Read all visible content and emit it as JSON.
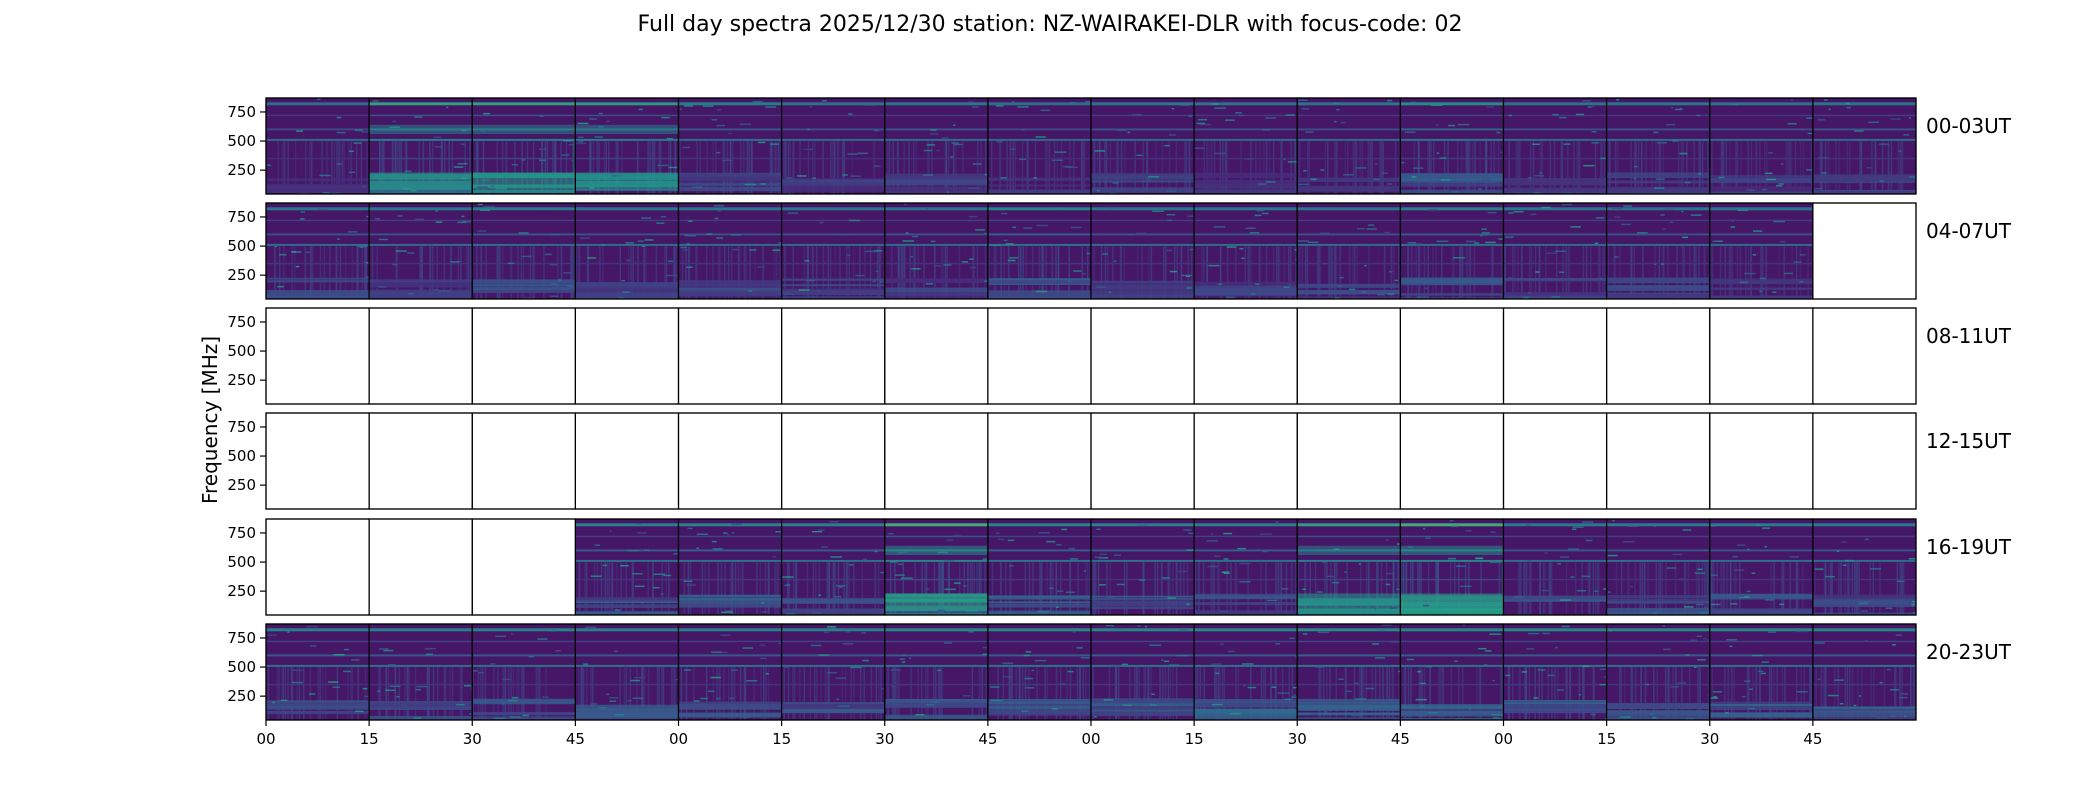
{
  "chart_data": {
    "type": "heatmap",
    "title": "Full day spectra 2025/12/30 station: NZ-WAIRAKEI-DLR with focus-code: 02",
    "xlabel": "",
    "ylabel": "Frequency [MHz]",
    "y_ticks": [
      "250",
      "500",
      "750"
    ],
    "y_tick_values": [
      250,
      500,
      750
    ],
    "ylim": [
      45,
      870
    ],
    "x_ticks": [
      "00",
      "15",
      "30",
      "45",
      "00",
      "15",
      "30",
      "45",
      "00",
      "15",
      "30",
      "45",
      "00",
      "15",
      "30",
      "45"
    ],
    "x_tick_minutes": [
      0,
      15,
      30,
      45,
      60,
      75,
      90,
      105,
      120,
      135,
      150,
      165,
      180,
      195,
      210,
      225
    ],
    "xlim_minutes": [
      0,
      240
    ],
    "colormap": "viridis",
    "grid": false,
    "rows": [
      {
        "label": "00-03UT",
        "available": [
          1,
          1,
          1,
          1,
          1,
          1,
          1,
          1,
          1,
          1,
          1,
          1,
          1,
          1,
          1,
          1
        ],
        "intensity": [
          0.1,
          0.6,
          0.6,
          0.55,
          0.25,
          0.15,
          0.2,
          0.1,
          0.2,
          0.15,
          0.15,
          0.4,
          0.15,
          0.2,
          0.15,
          0.2
        ]
      },
      {
        "label": "04-07UT",
        "available": [
          1,
          1,
          1,
          1,
          1,
          1,
          1,
          1,
          1,
          1,
          1,
          1,
          1,
          1,
          1,
          0
        ],
        "intensity": [
          0.2,
          0.2,
          0.25,
          0.2,
          0.2,
          0.2,
          0.2,
          0.35,
          0.2,
          0.2,
          0.2,
          0.3,
          0.2,
          0.2,
          0.2,
          0
        ]
      },
      {
        "label": "08-11UT",
        "available": [
          0,
          0,
          0,
          0,
          0,
          0,
          0,
          0,
          0,
          0,
          0,
          0,
          0,
          0,
          0,
          0
        ],
        "intensity": [
          0,
          0,
          0,
          0,
          0,
          0,
          0,
          0,
          0,
          0,
          0,
          0,
          0,
          0,
          0,
          0
        ]
      },
      {
        "label": "12-15UT",
        "available": [
          0,
          0,
          0,
          0,
          0,
          0,
          0,
          0,
          0,
          0,
          0,
          0,
          0,
          0,
          0,
          0
        ],
        "intensity": [
          0,
          0,
          0,
          0,
          0,
          0,
          0,
          0,
          0,
          0,
          0,
          0,
          0,
          0,
          0,
          0
        ]
      },
      {
        "label": "16-19UT",
        "available": [
          0,
          0,
          0,
          1,
          1,
          1,
          1,
          1,
          1,
          1,
          1,
          1,
          1,
          1,
          1,
          1
        ],
        "intensity": [
          0,
          0,
          0,
          0.3,
          0.35,
          0.3,
          0.75,
          0.35,
          0.3,
          0.3,
          0.6,
          0.75,
          0.25,
          0.25,
          0.25,
          0.25
        ]
      },
      {
        "label": "20-23UT",
        "available": [
          1,
          1,
          1,
          1,
          1,
          1,
          1,
          1,
          1,
          1,
          1,
          1,
          1,
          1,
          1,
          1
        ],
        "intensity": [
          0.3,
          0.3,
          0.3,
          0.3,
          0.3,
          0.3,
          0.35,
          0.35,
          0.35,
          0.35,
          0.4,
          0.35,
          0.35,
          0.35,
          0.35,
          0.35
        ]
      }
    ]
  }
}
